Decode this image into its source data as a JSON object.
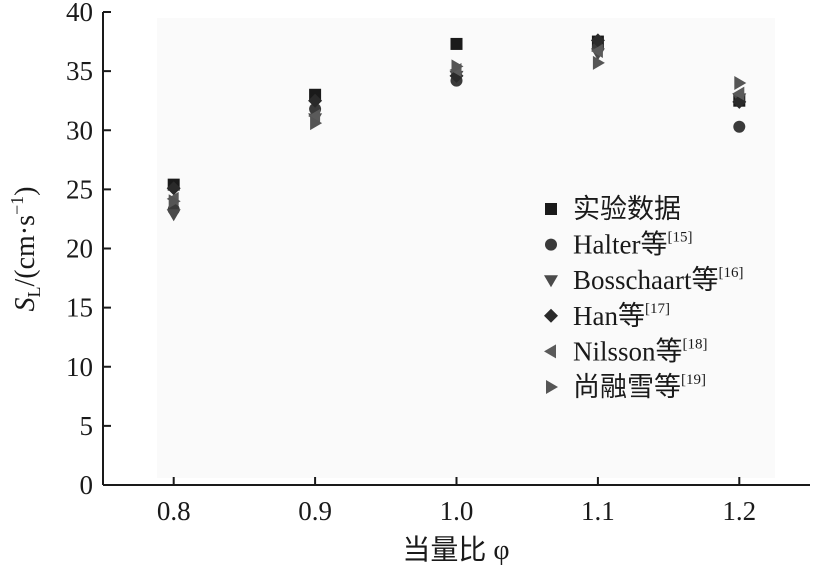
{
  "chart_data": {
    "type": "scatter",
    "x": [
      0.8,
      0.9,
      1.0,
      1.1,
      1.2
    ],
    "xlim": [
      0.75,
      1.25
    ],
    "ylim": [
      0,
      40
    ],
    "xticks": [
      "0.8",
      "0.9",
      "1.0",
      "1.1",
      "1.2"
    ],
    "yticks": [
      "0",
      "5",
      "10",
      "15",
      "20",
      "25",
      "30",
      "35",
      "40"
    ],
    "xlabel": "当量比 φ",
    "ylabel": "S_L/(cm·s^-1)",
    "grid": false,
    "legend_position": "right",
    "series": [
      {
        "name": "实验数据",
        "ref": "",
        "marker": "square",
        "color": "#1a1a1a",
        "values": [
          25.4,
          33.0,
          37.3,
          37.5,
          32.5
        ]
      },
      {
        "name": "Halter等",
        "ref": "[15]",
        "marker": "circle",
        "color": "#3a3a3a",
        "values": [
          23.3,
          31.8,
          34.2,
          37.0,
          30.3
        ]
      },
      {
        "name": "Bosschaart等",
        "ref": "[16]",
        "marker": "triangle-down",
        "color": "#4a4a4a",
        "values": [
          22.9,
          31.0,
          34.6,
          36.5,
          32.7
        ]
      },
      {
        "name": "Han等",
        "ref": "[17]",
        "marker": "diamond",
        "color": "#2a2a2a",
        "values": [
          25.1,
          32.5,
          34.6,
          37.6,
          32.4
        ]
      },
      {
        "name": "Nilsson等",
        "ref": "[18]",
        "marker": "triangle-left",
        "color": "#5a5a5a",
        "values": [
          24.2,
          31.2,
          35.1,
          36.7,
          33.1
        ]
      },
      {
        "name": "尚融雪等",
        "ref": "[19]",
        "marker": "triangle-right",
        "color": "#555555",
        "values": [
          24.0,
          30.6,
          35.4,
          35.7,
          34.0
        ]
      }
    ]
  }
}
